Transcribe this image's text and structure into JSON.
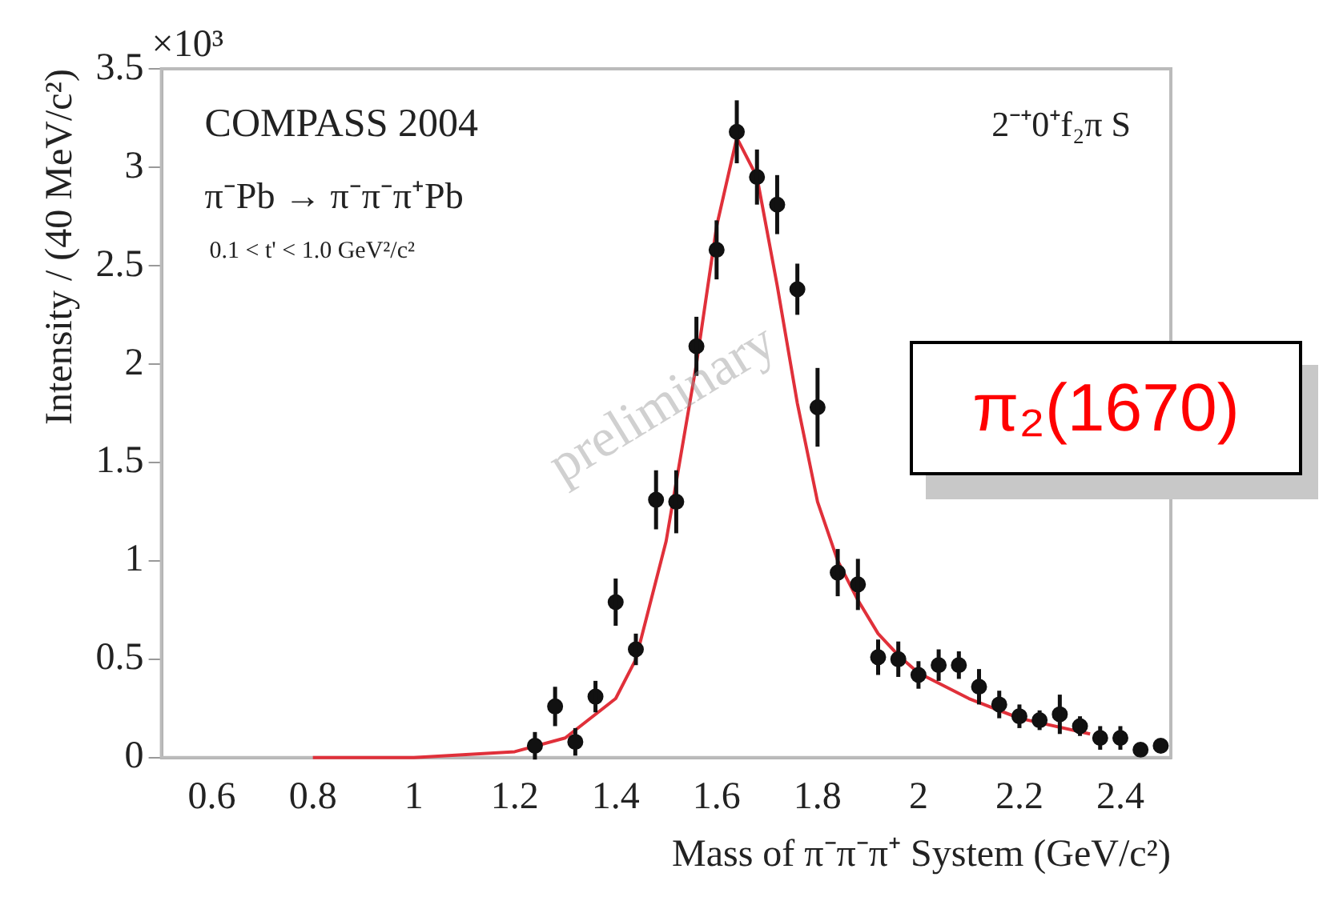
{
  "chart_data": {
    "type": "scatter",
    "xlabel": "Mass of π⁻π⁻π⁺ System (GeV/c²)",
    "ylabel": "Intensity / (40 MeV/c²)",
    "annotations": [
      "×10³",
      "COMPASS 2004",
      "π⁻Pb → π⁻π⁻π⁺Pb",
      "0.1 < t' < 1.0 GeV²/c²",
      "2⁻⁺0⁺f₂π S",
      "preliminary",
      "π₂(1670)"
    ],
    "xlim": [
      0.5,
      2.5
    ],
    "xticks": [
      0.6,
      0.8,
      1,
      1.2,
      1.4,
      1.6,
      1.8,
      2,
      2.2,
      2.4
    ],
    "ylim": [
      0,
      3.5
    ],
    "yticks": [
      0,
      0.5,
      1,
      1.5,
      2,
      2.5,
      3,
      3.5
    ],
    "grid": false,
    "legend": false,
    "series": [
      {
        "type": "scatter",
        "marker": "circle",
        "color": "#111111",
        "x": [
          1.24,
          1.28,
          1.32,
          1.36,
          1.4,
          1.44,
          1.48,
          1.52,
          1.56,
          1.6,
          1.64,
          1.68,
          1.72,
          1.76,
          1.8,
          1.84,
          1.88,
          1.92,
          1.96,
          2.0,
          2.04,
          2.08,
          2.12,
          2.16,
          2.2,
          2.24,
          2.28,
          2.32,
          2.36,
          2.4,
          2.44,
          2.48
        ],
        "values": [
          0.06,
          0.26,
          0.08,
          0.31,
          0.79,
          0.55,
          1.31,
          1.3,
          2.09,
          2.58,
          3.18,
          2.95,
          2.81,
          2.38,
          1.78,
          0.94,
          0.88,
          0.51,
          0.5,
          0.42,
          0.47,
          0.47,
          0.36,
          0.27,
          0.21,
          0.19,
          0.22,
          0.16,
          0.1,
          0.1,
          0.04,
          0.06
        ],
        "errors": [
          0.07,
          0.1,
          0.07,
          0.08,
          0.12,
          0.08,
          0.15,
          0.16,
          0.15,
          0.15,
          0.16,
          0.14,
          0.15,
          0.13,
          0.2,
          0.12,
          0.13,
          0.09,
          0.09,
          0.07,
          0.08,
          0.07,
          0.09,
          0.07,
          0.06,
          0.05,
          0.1,
          0.05,
          0.06,
          0.06,
          null,
          null
        ]
      },
      {
        "type": "line",
        "marker": "none",
        "color": "#e0303a",
        "x": [
          0.8,
          1.0,
          1.2,
          1.3,
          1.4,
          1.44,
          1.5,
          1.56,
          1.6,
          1.64,
          1.68,
          1.72,
          1.76,
          1.8,
          1.84,
          1.88,
          1.92,
          1.96,
          2.0,
          2.1,
          2.2,
          2.34
        ],
        "values": [
          0,
          0,
          0.03,
          0.1,
          0.3,
          0.5,
          1.1,
          2.0,
          2.7,
          3.15,
          2.95,
          2.4,
          1.8,
          1.3,
          1.0,
          0.8,
          0.63,
          0.52,
          0.43,
          0.3,
          0.2,
          0.12
        ]
      }
    ]
  }
}
